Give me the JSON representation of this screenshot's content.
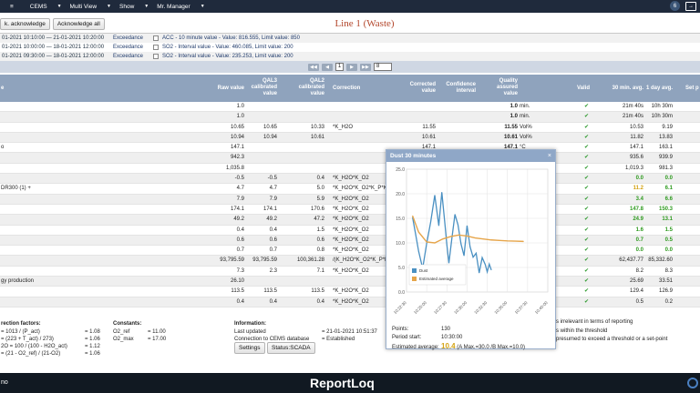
{
  "topbar": {
    "items": [
      "CEMS",
      "Multi View",
      "Show",
      "Mr. Manager"
    ],
    "badge": "6"
  },
  "actions": {
    "acknowledge": "k. acknowledge",
    "acknowledge_all": "Acknowledge all"
  },
  "page_title": "Line 1 (Waste)",
  "alarms": [
    {
      "time": "01-2021 10:10:00 — 21-01-2021 10:20:00",
      "type": "Exceedance",
      "text": "ACC - 10 minute value - Value: 816.555, Limit value: 850"
    },
    {
      "time": "01-2021 10:00:00 — 18-01-2021 12:00:00",
      "type": "Exceedance",
      "text": "SO2 - Interval value - Value: 460.085, Limit value: 200"
    },
    {
      "time": "01-2021 09:30:00 — 18-01-2021 12:00:00",
      "type": "Exceedance",
      "text": "SO2 - Interval value - Value: 235.253, Limit value: 200"
    }
  ],
  "pager": {
    "current": "1",
    "per_page": "8"
  },
  "table": {
    "headers": {
      "name": "e",
      "raw": "Raw value",
      "qal3": "QAL3 calibrated value",
      "qal2": "QAL2 calibrated value",
      "correction": "Correction",
      "corrected": "Corrected value",
      "confidence": "Confidence interval",
      "quality": "Quality assured value",
      "valid": "Valid",
      "min30": "30 min. avg.",
      "day1": "1 day avg.",
      "setpoint": "Set p"
    },
    "rows": [
      {
        "name": "",
        "raw": "1.0",
        "q3": "",
        "q2": "",
        "corr": "",
        "cv": "",
        "qa": "1.0",
        "unit": "min.",
        "m30": "21m 40s",
        "d1": "10h 30m",
        "m30c": "",
        "d1c": ""
      },
      {
        "name": "",
        "raw": "1.0",
        "q3": "",
        "q2": "",
        "corr": "",
        "cv": "",
        "qa": "1.0",
        "unit": "min.",
        "m30": "21m 40s",
        "d1": "10h 30m",
        "m30c": "",
        "d1c": ""
      },
      {
        "name": "",
        "raw": "10.65",
        "q3": "10.65",
        "q2": "10.33",
        "corr": "*K_H2O",
        "cv": "11.55",
        "qa": "11.55",
        "unit": "Vol%",
        "m30": "10.53",
        "d1": "9.19",
        "m30c": "",
        "d1c": ""
      },
      {
        "name": "",
        "raw": "10.94",
        "q3": "10.94",
        "q2": "10.61",
        "corr": "",
        "cv": "10.61",
        "qa": "10.61",
        "unit": "Vol%",
        "m30": "11.82",
        "d1": "13.83",
        "m30c": "",
        "d1c": ""
      },
      {
        "name": "o",
        "raw": "147.1",
        "q3": "",
        "q2": "",
        "corr": "",
        "cv": "147.1",
        "qa": "147.1",
        "unit": "°C",
        "m30": "147.1",
        "d1": "163.1",
        "m30c": "",
        "d1c": ""
      },
      {
        "name": "",
        "raw": "942.3",
        "q3": "",
        "q2": "",
        "corr": "",
        "cv": "",
        "qa": "",
        "unit": "",
        "m30": "935.6",
        "d1": "939.9",
        "m30c": "",
        "d1c": ""
      },
      {
        "name": "",
        "raw": "1,035.8",
        "q3": "",
        "q2": "",
        "corr": "",
        "cv": "",
        "qa": "",
        "unit": "",
        "m30": "1,019.3",
        "d1": "981.3",
        "m30c": "",
        "d1c": ""
      },
      {
        "name": "",
        "raw": "-0.5",
        "q3": "-0.5",
        "q2": "0.4",
        "corr": "*K_H2O*K_O2",
        "cv": "",
        "qa": "",
        "unit": "",
        "m30": "0.0",
        "d1": "0.0",
        "m30c": "g",
        "d1c": "g"
      },
      {
        "name": "DR300 (1) +",
        "raw": "4.7",
        "q3": "4.7",
        "q2": "5.0",
        "corr": "*K_H2O*K_O2*K_P*K_T",
        "cv": "",
        "qa": "",
        "unit": "",
        "m30": "11.2",
        "d1": "6.1",
        "m30c": "y",
        "d1c": "g"
      },
      {
        "name": "",
        "raw": "7.9",
        "q3": "7.9",
        "q2": "5.9",
        "corr": "*K_H2O*K_O2",
        "cv": "",
        "qa": "",
        "unit": "",
        "m30": "3.4",
        "d1": "6.6",
        "m30c": "g",
        "d1c": "g"
      },
      {
        "name": "",
        "raw": "174.1",
        "q3": "174.1",
        "q2": "170.6",
        "corr": "*K_H2O*K_O2",
        "cv": "",
        "qa": "",
        "unit": "",
        "m30": "147.8",
        "d1": "150.3",
        "m30c": "g",
        "d1c": "g"
      },
      {
        "name": "",
        "raw": "49.2",
        "q3": "49.2",
        "q2": "47.2",
        "corr": "*K_H2O*K_O2",
        "cv": "",
        "qa": "",
        "unit": "",
        "m30": "24.9",
        "d1": "13.1",
        "m30c": "g",
        "d1c": "g"
      },
      {
        "name": "",
        "raw": "0.4",
        "q3": "0.4",
        "q2": "1.5",
        "corr": "*K_H2O*K_O2",
        "cv": "",
        "qa": "",
        "unit": "",
        "m30": "1.6",
        "d1": "1.5",
        "m30c": "g",
        "d1c": "g"
      },
      {
        "name": "",
        "raw": "0.6",
        "q3": "0.6",
        "q2": "0.6",
        "corr": "*K_H2O*K_O2",
        "cv": "",
        "qa": "",
        "unit": "",
        "m30": "0.7",
        "d1": "0.5",
        "m30c": "g",
        "d1c": "g"
      },
      {
        "name": "",
        "raw": "0.7",
        "q3": "0.7",
        "q2": "0.8",
        "corr": "*K_H2O*K_O2",
        "cv": "",
        "qa": "",
        "unit": "",
        "m30": "0.0",
        "d1": "0.0",
        "m30c": "g",
        "d1c": "g"
      },
      {
        "name": "",
        "raw": "93,795.59",
        "q3": "93,795.59",
        "q2": "100,361.28",
        "corr": "/(K_H2O*K_O2*K_P*K_T)",
        "cv": "",
        "qa": "",
        "unit": "",
        "m30": "62,437.77",
        "d1": "85,332.60",
        "m30c": "",
        "d1c": ""
      },
      {
        "name": "",
        "raw": "7.3",
        "q3": "2.3",
        "q2": "7.1",
        "corr": "*K_H2O*K_O2",
        "cv": "",
        "qa": "",
        "unit": "",
        "m30": "8.2",
        "d1": "8.3",
        "m30c": "",
        "d1c": ""
      },
      {
        "name": "gy production",
        "raw": "26.10",
        "q3": "",
        "q2": "",
        "corr": "",
        "cv": "",
        "qa": "",
        "unit": "",
        "m30": "25.69",
        "d1": "33.51",
        "m30c": "",
        "d1c": ""
      },
      {
        "name": "",
        "raw": "113.5",
        "q3": "113.5",
        "q2": "113.5",
        "corr": "*K_H2O*K_O2",
        "cv": "",
        "qa": "",
        "unit": "",
        "m30": "129.4",
        "d1": "126.9",
        "m30c": "",
        "d1c": ""
      },
      {
        "name": "",
        "raw": "0.4",
        "q3": "0.4",
        "q2": "0.4",
        "corr": "*K_H2O*K_O2",
        "cv": "",
        "qa": "",
        "unit": "",
        "m30": "0.5",
        "d1": "0.2",
        "m30c": "",
        "d1c": ""
      }
    ]
  },
  "correction_factors": {
    "title": "rection factors:",
    "lines": [
      "= 1013 / (P_act)",
      "= (223 + T_act) / 273)",
      "2O = 100 / (100 - H2O_act)",
      "= (21 - O2_ref) / (21-O2)"
    ],
    "values": [
      "= 1.08",
      "= 1.06",
      "= 1.12",
      "= 1.06"
    ]
  },
  "constants": {
    "title": "Constants:",
    "o2_ref": "O2_ref",
    "o2_ref_val": "= 11.00",
    "o2_max": "O2_max",
    "o2_max_val": "= 17.00"
  },
  "information": {
    "title": "Information:",
    "last_updated_label": "Last updated",
    "last_updated": "= 21-01-2021 10:51:37",
    "conn_label": "Connection to CEMS database",
    "conn": "= Established",
    "settings": "Settings",
    "status": "Status:SCADA"
  },
  "legend_notes": [
    "s irrelevant in terms of reporting",
    "s within the threshold",
    "presumed to exceed a threshold or a set-point"
  ],
  "popup": {
    "title": "Dust 30 minutes",
    "points_label": "Points:",
    "points": "130",
    "period_label": "Period start:",
    "period": "10:30:00",
    "est_label": "Estimated average:",
    "est": "10.4",
    "est_note": "(A Max.=30.0 /B Max.=10.0)"
  },
  "footer": {
    "brand": "ReportLoq",
    "left": "no"
  },
  "chart_data": {
    "type": "line",
    "title": "",
    "xlabel": "",
    "ylabel": "",
    "ylim": [
      0,
      25
    ],
    "yticks": [
      "0.0",
      "5.0",
      "10.0",
      "15.0",
      "20.0",
      "25.0"
    ],
    "xticks": [
      "10:22:30",
      "10:25:00",
      "10:27:30",
      "10:30:00",
      "10:32:30",
      "10:35:00",
      "10:37:30",
      "10:40:00"
    ],
    "legend": [
      "Dust",
      "Estimated average"
    ],
    "series": [
      {
        "name": "Dust",
        "color": "#4a90c2",
        "x": [
          0.3,
          0.45,
          0.6,
          0.8,
          1.0,
          1.2,
          1.4,
          1.6,
          1.75,
          1.9,
          2.0,
          2.1,
          2.25,
          2.4,
          2.55,
          2.7,
          2.85,
          3.0,
          3.15,
          3.3,
          3.45,
          3.6,
          3.75,
          3.9,
          4.0,
          4.1,
          4.2
        ],
        "y": [
          15.2,
          11.8,
          8.3,
          4.8,
          9.9,
          14.3,
          19.7,
          13.5,
          20.3,
          14.0,
          9.6,
          5.9,
          11.0,
          15.8,
          13.7,
          9.8,
          7.4,
          13.5,
          9.2,
          7.1,
          7.9,
          3.9,
          7.0,
          5.6,
          4.1,
          5.7,
          4.5
        ]
      },
      {
        "name": "Estimated average",
        "color": "#e6a54a",
        "x": [
          0.3,
          0.6,
          1.0,
          1.4,
          1.8,
          2.2,
          2.6,
          3.0,
          3.4,
          3.8,
          4.2,
          4.6,
          5.0,
          5.4,
          5.8
        ],
        "y": [
          15.5,
          12.2,
          10.2,
          10.0,
          10.8,
          11.3,
          11.6,
          11.4,
          11.0,
          10.8,
          10.6,
          10.5,
          10.4,
          10.35,
          10.3
        ]
      }
    ]
  }
}
